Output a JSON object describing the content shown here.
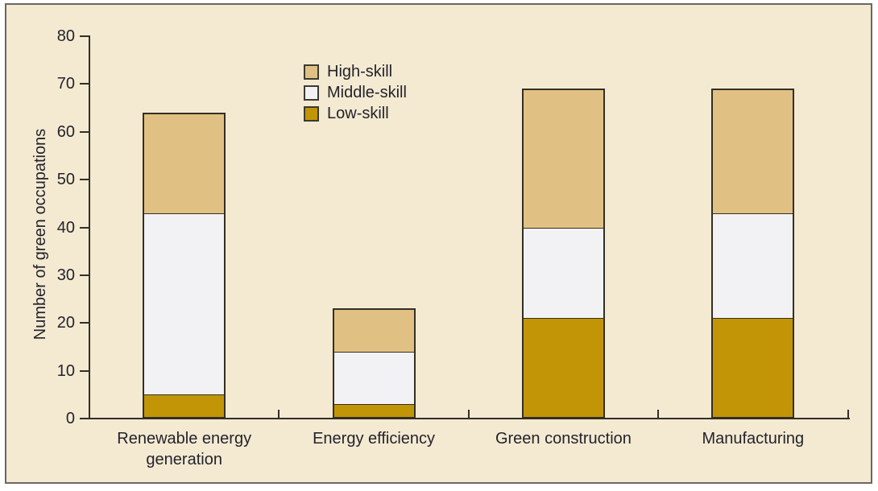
{
  "figure": {
    "background_color": "#F4EAD2",
    "frame_border_color": "#6A6760",
    "outline_color": "#332F26",
    "text_color": "#23232B"
  },
  "chart_data": {
    "type": "bar",
    "stacked": true,
    "title": "",
    "xlabel": "",
    "ylabel": "Number of green occupations",
    "ylim": [
      0,
      80
    ],
    "yticks": [
      0,
      10,
      20,
      30,
      40,
      50,
      60,
      70,
      80
    ],
    "grid": false,
    "legend_position": "inside top, left-of-center",
    "categories": [
      "Renewable energy\ngeneration",
      "Energy efficiency",
      "Green construction",
      "Manufacturing"
    ],
    "series": [
      {
        "name": "Low-skill",
        "color": "#C29507",
        "values": [
          5,
          3,
          21,
          21
        ]
      },
      {
        "name": "Middle-skill",
        "color": "#F2F2F4",
        "values": [
          38,
          11,
          19,
          22
        ]
      },
      {
        "name": "High-skill",
        "color": "#E1C183",
        "values": [
          21,
          9,
          29,
          26
        ]
      }
    ],
    "stack_totals": [
      64,
      23,
      69,
      69
    ],
    "segment_boundaries_note": "cumulative tops: Renewable 5/43/64, Energy efficiency 3/14/23, Green construction 21/40/69, Manufacturing 21/43/69",
    "legend": [
      {
        "label": "High-skill",
        "color": "#E1C183"
      },
      {
        "label": "Middle-skill",
        "color": "#F2F2F4"
      },
      {
        "label": "Low-skill",
        "color": "#C29507"
      }
    ]
  }
}
